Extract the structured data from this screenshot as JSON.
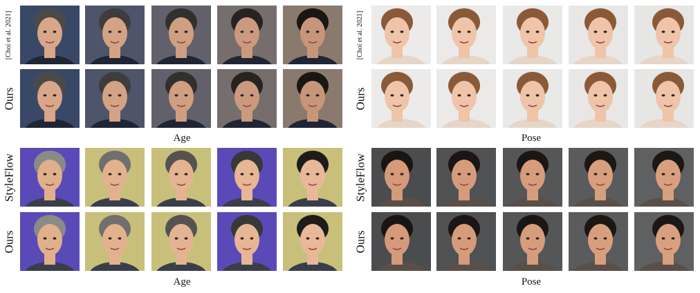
{
  "panels": {
    "top_left": {
      "label_top": "[Choi et al. 2021]",
      "label_bottom": "Ours",
      "caption": "Age",
      "bg": "#3a4868",
      "skin": "#d8a688",
      "hair": "#4a4a48",
      "clothes": "#1f2534",
      "bg2": "#8a7a6e",
      "skin2": "#c7967a",
      "hair2": "#1a1614"
    },
    "top_right": {
      "label_top": "[Choi et al. 2021]",
      "label_bottom": "Ours",
      "caption": "Pose",
      "bg": "#ecebea",
      "skin": "#efc4a8",
      "hair": "#8a5a38",
      "clothes": "#e6d6c8",
      "bg2": "#e6e6e4",
      "skin2": "#efc4a8",
      "hair2": "#8a5a38"
    },
    "bottom_left": {
      "label_top": "StyleFlow",
      "label_bottom": "Ours",
      "caption": "Age",
      "bg": "#5a4ab8",
      "skin": "#e0b08c",
      "hair": "#8a8a88",
      "clothes": "#3a3e4a",
      "bg2": "#c8c07a",
      "skin2": "#e8b898",
      "hair2": "#1e1c1a"
    },
    "bottom_right": {
      "label_top": "StyleFlow",
      "label_bottom": "Ours",
      "caption": "Pose",
      "bg": "#4a4c4e",
      "skin": "#d49a7a",
      "hair": "#1a1412",
      "clothes": "#5a4e48",
      "bg2": "#5e6062",
      "skin2": "#d8a07e",
      "hair2": "#1c1614"
    }
  }
}
